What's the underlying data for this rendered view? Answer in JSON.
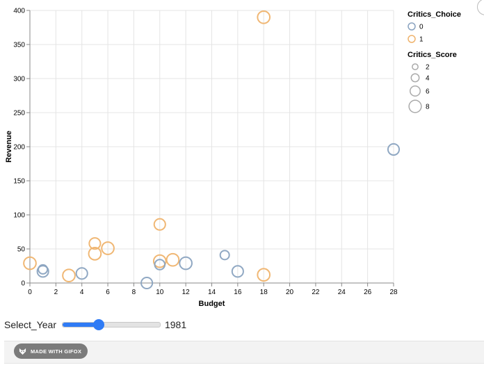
{
  "chart_data": {
    "type": "scatter",
    "xlabel": "Budget",
    "ylabel": "Revenue",
    "xlim": [
      0,
      28
    ],
    "ylim": [
      0,
      400
    ],
    "x_ticks": [
      0,
      2,
      4,
      6,
      8,
      10,
      12,
      14,
      16,
      18,
      20,
      22,
      24,
      26,
      28
    ],
    "y_ticks": [
      0,
      50,
      100,
      150,
      200,
      250,
      300,
      350,
      400
    ],
    "grid": true,
    "color_field": "Critics_Choice",
    "size_field": "Critics_Score",
    "color_legend": {
      "title": "Critics_Choice",
      "entries": [
        {
          "label": "0",
          "color": "#8aa3c0"
        },
        {
          "label": "1",
          "color": "#efb36d"
        }
      ]
    },
    "size_legend": {
      "title": "Critics_Score",
      "entries": [
        {
          "label": "2",
          "value": 2
        },
        {
          "label": "4",
          "value": 4
        },
        {
          "label": "6",
          "value": 6
        },
        {
          "label": "8",
          "value": 8
        }
      ]
    },
    "legend_position": "right",
    "points": [
      {
        "x": 0,
        "y": 29,
        "choice": 1,
        "score": 8
      },
      {
        "x": 1,
        "y": 20,
        "choice": 0,
        "score": 5
      },
      {
        "x": 1,
        "y": 17,
        "choice": 0,
        "score": 7
      },
      {
        "x": 3,
        "y": 11,
        "choice": 1,
        "score": 8
      },
      {
        "x": 4,
        "y": 14,
        "choice": 0,
        "score": 7
      },
      {
        "x": 5,
        "y": 58,
        "choice": 1,
        "score": 7
      },
      {
        "x": 5,
        "y": 43,
        "choice": 1,
        "score": 8
      },
      {
        "x": 6,
        "y": 51,
        "choice": 1,
        "score": 8
      },
      {
        "x": 9,
        "y": 0,
        "choice": 0,
        "score": 7
      },
      {
        "x": 10,
        "y": 86,
        "choice": 1,
        "score": 7
      },
      {
        "x": 10,
        "y": 32,
        "choice": 1,
        "score": 8
      },
      {
        "x": 10,
        "y": 27,
        "choice": 0,
        "score": 6
      },
      {
        "x": 11,
        "y": 34,
        "choice": 1,
        "score": 8
      },
      {
        "x": 12,
        "y": 29,
        "choice": 0,
        "score": 8
      },
      {
        "x": 15,
        "y": 41,
        "choice": 0,
        "score": 5
      },
      {
        "x": 16,
        "y": 17,
        "choice": 0,
        "score": 7
      },
      {
        "x": 18,
        "y": 390,
        "choice": 1,
        "score": 8
      },
      {
        "x": 18,
        "y": 12,
        "choice": 1,
        "score": 8
      },
      {
        "x": 28,
        "y": 196,
        "choice": 0,
        "score": 7
      }
    ]
  },
  "colors": {
    "choice_0": "#8aa3c0",
    "choice_1": "#efb36d",
    "slider_accent": "#2f7bf5"
  },
  "controls": {
    "slider_label": "Select_Year",
    "slider_value": "1981",
    "slider_min": 1977,
    "slider_max": 1985,
    "slider_fraction": 0.37
  },
  "footer": {
    "badge_text": "MADE WITH GIFOX",
    "badge_icon": "fox-icon"
  }
}
